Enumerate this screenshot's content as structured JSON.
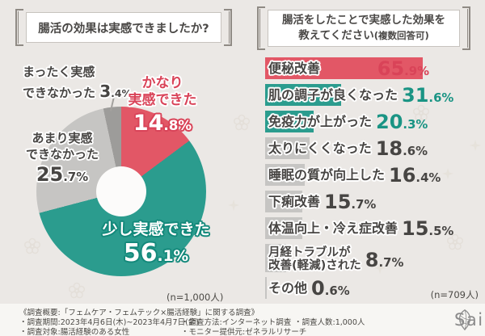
{
  "chart_data": [
    {
      "type": "pie",
      "subtype": "donut",
      "title": "腸活の効果は実感できましたか?",
      "n_note": "(n=1,000人)",
      "labels": [
        "かなり実感できた",
        "少し実感できた",
        "あまり実感できなかった",
        "まったく実感できなかった"
      ],
      "values": [
        14.8,
        56.1,
        25.7,
        3.4
      ],
      "colors": [
        "#e25766",
        "#2b9c8e",
        "#c6c5c3",
        "#9d9c9a"
      ],
      "start_angle_deg": 0,
      "direction": "clockwise",
      "legend_position": "none"
    },
    {
      "type": "bar",
      "orientation": "horizontal",
      "title": "腸活をしたことで実感した効果を教えてください(複数回答可)",
      "n_note": "(n=709人)",
      "categories": [
        "便秘改善",
        "肌の調子が良くなった",
        "免疫力が上がった",
        "太りにくくなった",
        "睡眠の質が向上した",
        "下痢改善",
        "体温向上・冷え症改善",
        "月経トラブルが\n改善(軽減)された",
        "その他"
      ],
      "values": [
        65.9,
        31.6,
        20.3,
        18.6,
        16.4,
        15.7,
        15.5,
        8.7,
        0.6
      ],
      "bar_colors": [
        "#e25766",
        "#2b9c8e",
        "#2b9c8e",
        "#c6c5c3",
        "#c6c5c3",
        "#c6c5c3",
        "#c6c5c3",
        "#c6c5c3",
        "#c6c5c3"
      ],
      "value_colors": [
        "#d94358",
        "#1a9484",
        "#1a9484",
        "#474543",
        "#474543",
        "#474543",
        "#474543",
        "#474543",
        "#474543"
      ],
      "xlim": [
        0,
        100
      ],
      "grid": false
    }
  ],
  "left_panel": {
    "slice_labels": {
      "much": {
        "lines": [
          "かなり",
          "実感できた"
        ],
        "value_index": 0
      },
      "somewhat": {
        "lines": [
          "少し実感できた"
        ],
        "value_index": 1
      },
      "not_really": {
        "lines": [
          "あまり実感",
          "できなかった"
        ],
        "value_index": 2
      },
      "none": {
        "lines": [
          "まったく実感",
          "できなかった"
        ],
        "value_index": 3
      }
    }
  },
  "right_panel": {
    "title_line1": "腸活をしたことで実感した効果を",
    "title_line2_main": "教えてください",
    "title_line2_sub": "(複数回答可)"
  },
  "footer": {
    "overview": "《調査概要:「フェムケア・フェムテック×腸活経験」に関する調査》",
    "period": "・調査期間:2023年4月6日(木)~2023年4月7日(金)",
    "subjects": "・調査対象:腸活経験のある女性",
    "method": "・調査方法:インターネット調査",
    "monitor": "・モニター提供元:ゼネラルリサーチ",
    "count": "・調査人数:1,000人",
    "logo_text": "Sainnatul"
  },
  "colors": {
    "accent_red": "#e25766",
    "accent_teal": "#2b9c8e",
    "bar_gray": "#c6c5c3",
    "slice_dark_gray": "#9d9c9a",
    "background": "#ebe8e5",
    "footer_background": "#f7f6f3",
    "text_dark": "#474543",
    "logo_gray": "#8b8b8b"
  }
}
